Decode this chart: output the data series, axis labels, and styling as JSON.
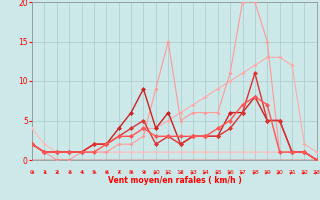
{
  "xlabel": "Vent moyen/en rafales ( km/h )",
  "xlim": [
    0,
    23
  ],
  "ylim": [
    0,
    20
  ],
  "bg": "#cce8e8",
  "grid_color": "#aacccc",
  "x_ticks": [
    0,
    1,
    2,
    3,
    4,
    5,
    6,
    7,
    8,
    9,
    10,
    11,
    12,
    13,
    14,
    15,
    16,
    17,
    18,
    19,
    20,
    21,
    22,
    23
  ],
  "y_ticks": [
    0,
    5,
    10,
    15,
    20
  ],
  "lines": [
    {
      "x": [
        0,
        1,
        2,
        3,
        4,
        5,
        6,
        7,
        8,
        9,
        10,
        11,
        12,
        13,
        14,
        15,
        16,
        17,
        18,
        19,
        20,
        21,
        22,
        23
      ],
      "y": [
        4,
        2,
        1,
        1,
        1,
        1,
        1,
        1,
        1,
        1,
        1,
        1,
        1,
        1,
        1,
        1,
        1,
        1,
        1,
        1,
        1,
        1,
        1,
        0
      ],
      "color": "#ffbbbb",
      "lw": 0.8,
      "ms": 2.0
    },
    {
      "x": [
        0,
        1,
        2,
        3,
        4,
        5,
        6,
        7,
        8,
        9,
        10,
        11,
        12,
        13,
        14,
        15,
        16,
        17,
        18,
        19,
        20,
        21,
        22,
        23
      ],
      "y": [
        2,
        1,
        1,
        1,
        1,
        2,
        2,
        3,
        3,
        4,
        4,
        5,
        6,
        7,
        8,
        9,
        10,
        11,
        12,
        13,
        13,
        12,
        2,
        1
      ],
      "color": "#ffaaaa",
      "lw": 0.8,
      "ms": 2.0
    },
    {
      "x": [
        0,
        1,
        2,
        3,
        4,
        5,
        6,
        7,
        8,
        9,
        10,
        11,
        12,
        13,
        14,
        15,
        16,
        17,
        18,
        19,
        20,
        21,
        22,
        23
      ],
      "y": [
        2,
        1,
        0,
        0,
        1,
        1,
        1,
        2,
        2,
        3,
        9,
        15,
        5,
        6,
        6,
        6,
        11,
        20,
        20,
        15,
        1,
        1,
        1,
        0
      ],
      "color": "#ff9999",
      "lw": 0.8,
      "ms": 2.0
    },
    {
      "x": [
        0,
        1,
        2,
        3,
        4,
        5,
        6,
        7,
        8,
        9,
        10,
        11,
        12,
        13,
        14,
        15,
        16,
        17,
        18,
        19,
        20,
        21,
        22,
        23
      ],
      "y": [
        2,
        1,
        1,
        1,
        1,
        2,
        2,
        4,
        6,
        9,
        4,
        6,
        2,
        3,
        3,
        3,
        6,
        6,
        8,
        5,
        5,
        1,
        1,
        0
      ],
      "color": "#cc2222",
      "lw": 1.0,
      "ms": 2.5
    },
    {
      "x": [
        0,
        1,
        2,
        3,
        4,
        5,
        6,
        7,
        8,
        9,
        10,
        11,
        12,
        13,
        14,
        15,
        16,
        17,
        18,
        19,
        20,
        21,
        22,
        23
      ],
      "y": [
        2,
        1,
        1,
        1,
        1,
        2,
        2,
        3,
        4,
        5,
        2,
        3,
        2,
        3,
        3,
        3,
        4,
        6,
        11,
        5,
        5,
        1,
        1,
        0
      ],
      "color": "#dd3333",
      "lw": 1.0,
      "ms": 2.5
    },
    {
      "x": [
        0,
        1,
        2,
        3,
        4,
        5,
        6,
        7,
        8,
        9,
        10,
        11,
        12,
        13,
        14,
        15,
        16,
        17,
        18,
        19,
        20,
        21,
        22,
        23
      ],
      "y": [
        2,
        1,
        1,
        1,
        1,
        1,
        2,
        3,
        3,
        4,
        3,
        3,
        3,
        3,
        3,
        4,
        5,
        7,
        8,
        7,
        1,
        1,
        1,
        0
      ],
      "color": "#ff5555",
      "lw": 1.0,
      "ms": 2.5
    }
  ],
  "arrow_angles_deg": [
    225,
    225,
    225,
    225,
    225,
    225,
    225,
    225,
    225,
    225,
    45,
    45,
    225,
    45,
    45,
    45,
    45,
    45,
    45,
    45,
    45,
    45,
    45,
    45
  ]
}
